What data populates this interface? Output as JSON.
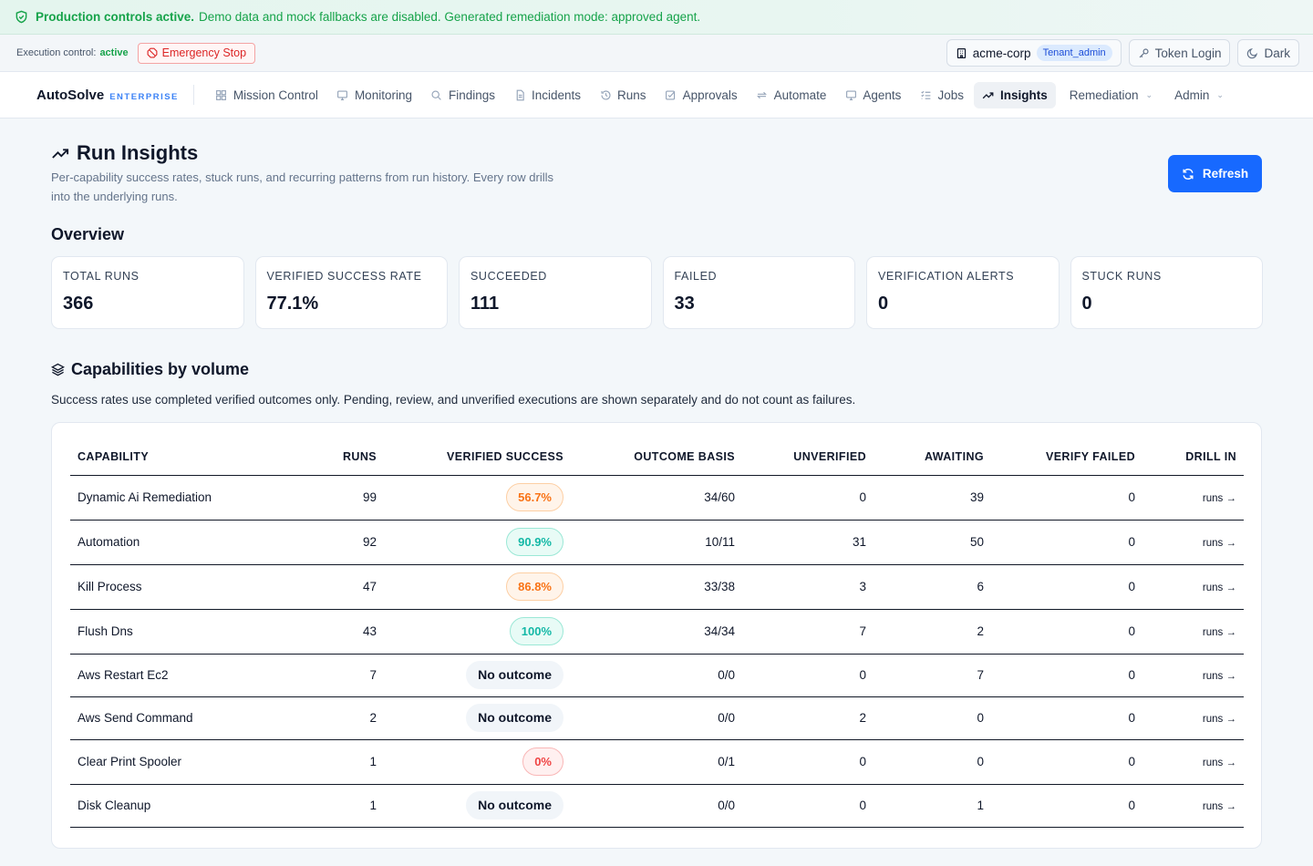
{
  "banner": {
    "strong": "Production controls active.",
    "rest": "Demo data and mock fallbacks are disabled. Generated remediation mode: approved agent."
  },
  "control": {
    "label": "Execution control:",
    "state": "active",
    "estop": "Emergency Stop",
    "tenant": "acme-corp",
    "role": "Tenant_admin",
    "token_login": "Token Login",
    "theme": "Dark"
  },
  "nav": {
    "brand": "AutoSolve",
    "tier": "ENTERPRISE",
    "items": [
      "Mission Control",
      "Monitoring",
      "Findings",
      "Incidents",
      "Runs",
      "Approvals",
      "Automate",
      "Agents",
      "Jobs",
      "Insights",
      "Remediation",
      "Admin"
    ]
  },
  "page": {
    "title": "Run Insights",
    "subtitle": "Per-capability success rates, stuck runs, and recurring patterns from run history. Every row drills into the underlying runs.",
    "refresh": "Refresh"
  },
  "overview": {
    "heading": "Overview",
    "stats": [
      {
        "label": "TOTAL RUNS",
        "value": "366"
      },
      {
        "label": "VERIFIED SUCCESS RATE",
        "value": "77.1%"
      },
      {
        "label": "SUCCEEDED",
        "value": "111"
      },
      {
        "label": "FAILED",
        "value": "33"
      },
      {
        "label": "VERIFICATION ALERTS",
        "value": "0"
      },
      {
        "label": "STUCK RUNS",
        "value": "0"
      }
    ]
  },
  "capabilities": {
    "heading": "Capabilities by volume",
    "note": "Success rates use completed verified outcomes only. Pending, review, and unverified executions are shown separately and do not count as failures.",
    "columns": [
      "CAPABILITY",
      "RUNS",
      "VERIFIED SUCCESS",
      "OUTCOME BASIS",
      "UNVERIFIED",
      "AWAITING",
      "VERIFY FAILED",
      "DRILL IN"
    ],
    "rows": [
      {
        "name": "Dynamic Ai Remediation",
        "runs": "99",
        "success": "56.7%",
        "basis": "34/60",
        "unverified": "0",
        "awaiting": "39",
        "verify_failed": "0",
        "drill": "runs →"
      },
      {
        "name": "Automation",
        "runs": "92",
        "success": "90.9%",
        "basis": "10/11",
        "unverified": "31",
        "awaiting": "50",
        "verify_failed": "0",
        "drill": "runs →"
      },
      {
        "name": "Kill Process",
        "runs": "47",
        "success": "86.8%",
        "basis": "33/38",
        "unverified": "3",
        "awaiting": "6",
        "verify_failed": "0",
        "drill": "runs →"
      },
      {
        "name": "Flush Dns",
        "runs": "43",
        "success": "100%",
        "basis": "34/34",
        "unverified": "7",
        "awaiting": "2",
        "verify_failed": "0",
        "drill": "runs →"
      },
      {
        "name": "Aws Restart Ec2",
        "runs": "7",
        "success": "No outcome",
        "basis": "0/0",
        "unverified": "0",
        "awaiting": "7",
        "verify_failed": "0",
        "drill": "runs →"
      },
      {
        "name": "Aws Send Command",
        "runs": "2",
        "success": "No outcome",
        "basis": "0/0",
        "unverified": "2",
        "awaiting": "0",
        "verify_failed": "0",
        "drill": "runs →"
      },
      {
        "name": "Clear Print Spooler",
        "runs": "1",
        "success": "0%",
        "basis": "0/1",
        "unverified": "0",
        "awaiting": "0",
        "verify_failed": "0",
        "drill": "runs →"
      },
      {
        "name": "Disk Cleanup",
        "runs": "1",
        "success": "No outcome",
        "basis": "0/0",
        "unverified": "0",
        "awaiting": "1",
        "verify_failed": "0",
        "drill": "runs →"
      }
    ]
  }
}
